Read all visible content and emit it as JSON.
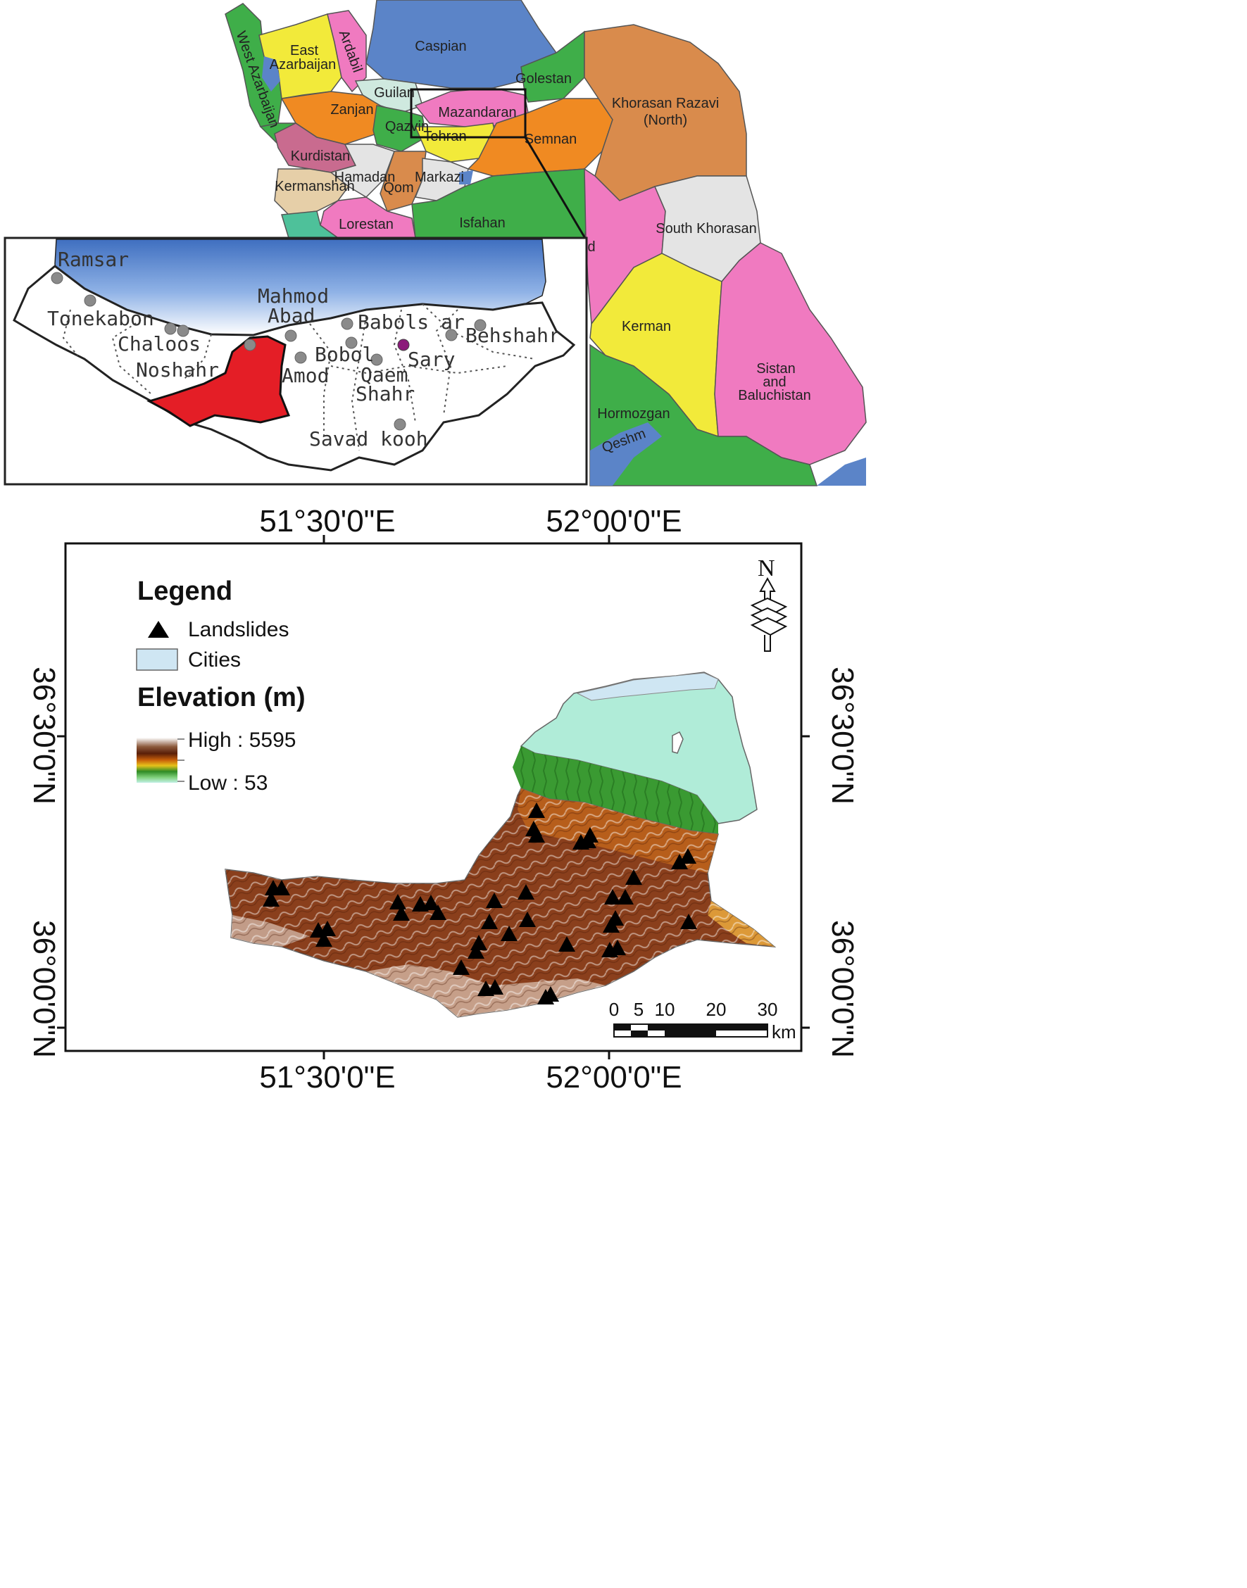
{
  "iran_map": {
    "provinces": [
      {
        "name": "Caspian",
        "color": "#5b84c8"
      },
      {
        "name": "East Azarbaijan",
        "color": "#f2ea3a"
      },
      {
        "name": "Ardabil",
        "color": "#f07ac0"
      },
      {
        "name": "West Azarbaijan",
        "color": "#3fae49"
      },
      {
        "name": "Guilan",
        "color": "#cfe9df"
      },
      {
        "name": "Golestan",
        "color": "#3fae49"
      },
      {
        "name": "Khorasan Razavi",
        "color": "#d98b4c"
      },
      {
        "name": "(North)",
        "color": "#d98b4c"
      },
      {
        "name": "Zanjan",
        "color": "#f08a22"
      },
      {
        "name": "Mazandaran",
        "color": "#f07ac0"
      },
      {
        "name": "Qazvin",
        "color": "#3fae49"
      },
      {
        "name": "Tehran",
        "color": "#f2ea3a"
      },
      {
        "name": "Semnan",
        "color": "#f08a22"
      },
      {
        "name": "Kurdistan",
        "color": "#c96b8f"
      },
      {
        "name": "Hamadan",
        "color": "#e4e4e4"
      },
      {
        "name": "Markazi",
        "color": "#e4e4e4"
      },
      {
        "name": "Kermanshah",
        "color": "#e6cfa8"
      },
      {
        "name": "Qom",
        "color": "#d98b4c"
      },
      {
        "name": "Lorestan",
        "color": "#f07ac0"
      },
      {
        "name": "Isfahan",
        "color": "#3fae49"
      },
      {
        "name": "South Khorasan",
        "color": "#e4e4e4"
      },
      {
        "name": "Kerman",
        "color": "#f2ea3a"
      },
      {
        "name": "Sistan",
        "color": "#f07ac0"
      },
      {
        "name": "and",
        "color": "#f07ac0"
      },
      {
        "name": "Baluchistan",
        "color": "#f07ac0"
      },
      {
        "name": "Hormozgan",
        "color": "#3fae49"
      },
      {
        "name": "Qeshm",
        "color": "#3fae49"
      },
      {
        "name": "d",
        "color": "#f07ac0"
      }
    ]
  },
  "inset": {
    "cities": [
      "Ramsar",
      "Tonekabon",
      "Chaloos",
      "Noshahr",
      "Mahmod",
      "Abad",
      "Babols ar",
      "Behshahr",
      "Bobol",
      "Sary",
      "Amod",
      "Qaem",
      "Shahr",
      "Savad kooh"
    ],
    "study_area_color": "#e41e26",
    "sea_color": "#4f7fc9"
  },
  "study_map": {
    "lon_labels": [
      "51°30'0\"E",
      "52°00'0\"E"
    ],
    "lat_labels": [
      "36°30'0\"N",
      "36°00'0\"N"
    ],
    "north_label": "N",
    "legend": {
      "title": "Legend",
      "landslides_label": "Landslides",
      "cities_label": "Cities",
      "cities_color": "#cfe6f3",
      "elevation_title": "Elevation (m)",
      "high_label": "High : 5595",
      "low_label": "Low :  53"
    },
    "scale_bar": {
      "ticks": [
        "0",
        "5",
        "10",
        "20",
        "30"
      ],
      "unit": "km"
    },
    "landslide_count": 52
  }
}
